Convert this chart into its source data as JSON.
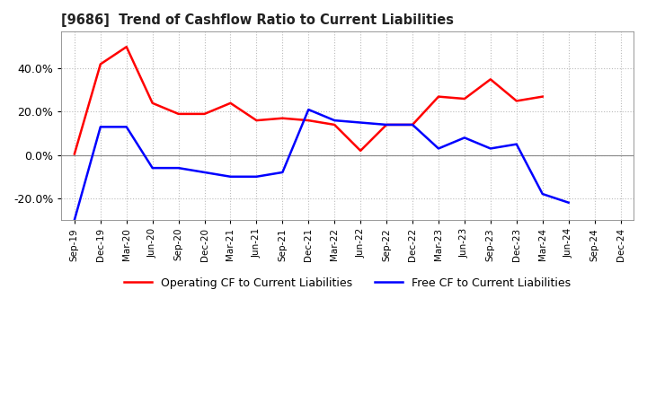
{
  "title": "[9686]  Trend of Cashflow Ratio to Current Liabilities",
  "x_labels": [
    "Sep-19",
    "Dec-19",
    "Mar-20",
    "Jun-20",
    "Sep-20",
    "Dec-20",
    "Mar-21",
    "Jun-21",
    "Sep-21",
    "Dec-21",
    "Mar-22",
    "Jun-22",
    "Sep-22",
    "Dec-22",
    "Mar-23",
    "Jun-23",
    "Sep-23",
    "Dec-23",
    "Mar-24",
    "Jun-24",
    "Sep-24",
    "Dec-24"
  ],
  "operating_cf": [
    0.5,
    42.0,
    50.0,
    24.0,
    19.0,
    19.0,
    24.0,
    16.0,
    17.0,
    16.0,
    14.0,
    2.0,
    14.0,
    14.0,
    27.0,
    26.0,
    35.0,
    25.0,
    27.0,
    null,
    null,
    null
  ],
  "free_cf": [
    -30.0,
    13.0,
    13.0,
    -6.0,
    -6.0,
    -8.0,
    -10.0,
    -10.0,
    -8.0,
    21.0,
    16.0,
    15.0,
    14.0,
    14.0,
    3.0,
    8.0,
    3.0,
    5.0,
    -18.0,
    -22.0,
    null,
    null
  ],
  "operating_color": "#ff0000",
  "free_color": "#0000ff",
  "ylim": [
    -30.0,
    57.0
  ],
  "yticks": [
    -20.0,
    0.0,
    20.0,
    40.0
  ],
  "background_color": "#ffffff",
  "grid_color": "#bbbbbb",
  "legend_operating": "Operating CF to Current Liabilities",
  "legend_free": "Free CF to Current Liabilities",
  "linewidth": 1.8
}
